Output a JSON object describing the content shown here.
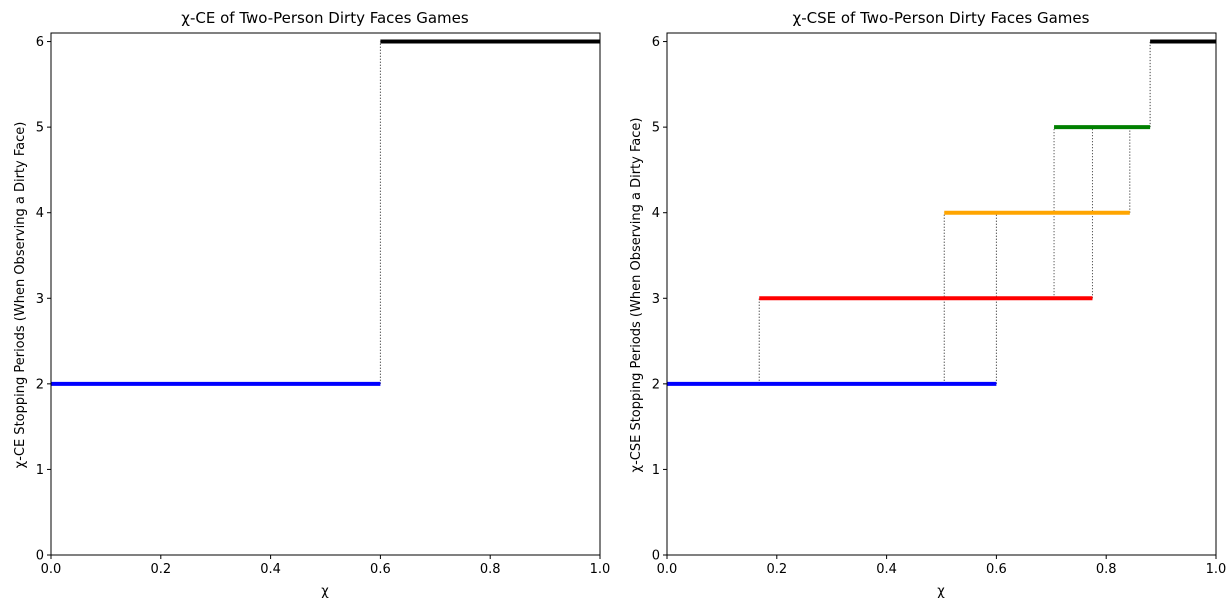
{
  "chart_data": [
    {
      "type": "line",
      "title": "χ-CE of Two-Person Dirty Faces Games",
      "xlabel": "χ",
      "ylabel": "χ-CE Stopping Periods (When Observing a Dirty Face)",
      "xlim": [
        0,
        1
      ],
      "ylim": [
        0,
        6.1
      ],
      "xticks": [
        "0.0",
        "0.2",
        "0.4",
        "0.6",
        "0.8",
        "1.0"
      ],
      "yticks": [
        "0",
        "1",
        "2",
        "3",
        "4",
        "5",
        "6"
      ],
      "grid": false,
      "series": [
        {
          "color": "#0000ff",
          "segments": [
            {
              "x": [
                0,
                0.6
              ],
              "y": 2
            }
          ]
        },
        {
          "color": "#000000",
          "segments": [
            {
              "x": [
                0.6,
                1.0
              ],
              "y": 6
            }
          ]
        }
      ],
      "connectors": [
        {
          "x": 0.6,
          "y": [
            2,
            6
          ]
        }
      ]
    },
    {
      "type": "line",
      "title": "χ-CSE of Two-Person Dirty Faces Games",
      "xlabel": "χ",
      "ylabel": "χ-CSE Stopping Periods (When Observing a Dirty Face)",
      "xlim": [
        0,
        1
      ],
      "ylim": [
        0,
        6.1
      ],
      "xticks": [
        "0.0",
        "0.2",
        "0.4",
        "0.6",
        "0.8",
        "1.0"
      ],
      "yticks": [
        "0",
        "1",
        "2",
        "3",
        "4",
        "5",
        "6"
      ],
      "grid": false,
      "series": [
        {
          "color": "#0000ff",
          "segments": [
            {
              "x": [
                0,
                0.6
              ],
              "y": 2
            }
          ]
        },
        {
          "color": "#ff0000",
          "segments": [
            {
              "x": [
                0.168,
                0.775
              ],
              "y": 3
            }
          ]
        },
        {
          "color": "#ffa500",
          "segments": [
            {
              "x": [
                0.505,
                0.843
              ],
              "y": 4
            }
          ]
        },
        {
          "color": "#008000",
          "segments": [
            {
              "x": [
                0.705,
                0.88
              ],
              "y": 5
            }
          ]
        },
        {
          "color": "#000000",
          "segments": [
            {
              "x": [
                0.88,
                1.0
              ],
              "y": 6
            }
          ]
        }
      ],
      "connectors": [
        {
          "x": 0.168,
          "y": [
            2,
            3
          ]
        },
        {
          "x": 0.505,
          "y": [
            2,
            4
          ]
        },
        {
          "x": 0.6,
          "y": [
            2,
            4
          ]
        },
        {
          "x": 0.705,
          "y": [
            3,
            5
          ]
        },
        {
          "x": 0.775,
          "y": [
            3,
            5
          ]
        },
        {
          "x": 0.843,
          "y": [
            4,
            5
          ]
        },
        {
          "x": 0.88,
          "y": [
            5,
            6
          ]
        }
      ]
    }
  ]
}
